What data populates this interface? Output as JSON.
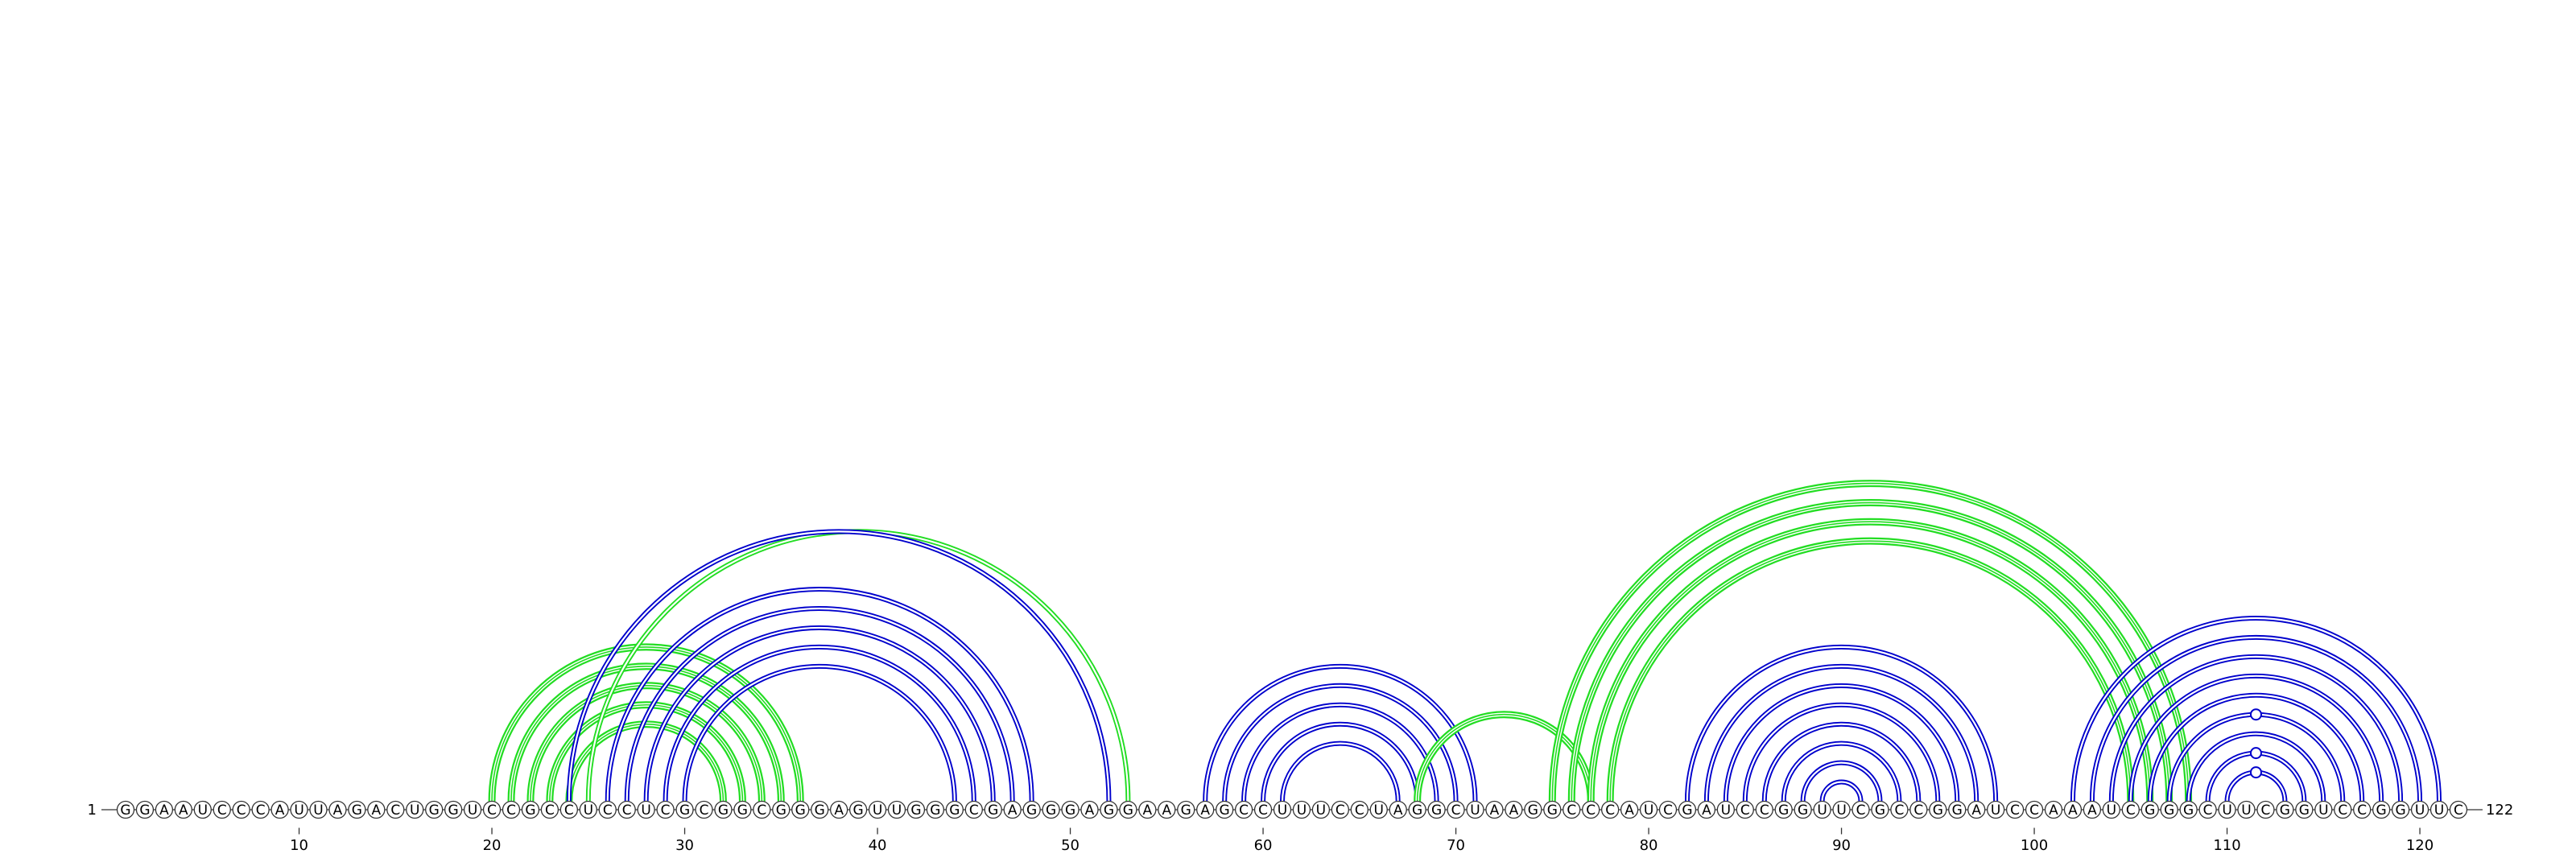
{
  "sequence": {
    "start_label": "1",
    "end_label": "122",
    "bases": "GGAAUCCCAUUAGACUGGUCCGCCUCCUCGCGGCGGGAGUUGGGCGAGGGAGGAAGAGCCUUUCCUAGGCUAAGGCCCAUCGAUCCGGUUCGCCGGAUCCAAAUCGGGCUUCGGUCCGGUUC"
  },
  "ruler": {
    "ticks": [
      "10",
      "20",
      "30",
      "40",
      "50",
      "60",
      "70",
      "80",
      "90",
      "100",
      "110",
      "120"
    ]
  },
  "colors": {
    "blue_arc": "#0000cc",
    "green_arc": "#22dd22",
    "circle_fill": "#ffffff",
    "circle_stroke": "#333333",
    "text": "#000000"
  },
  "arc_groups": [
    {
      "color": "green",
      "style": "triple",
      "pairs": [
        [
          20,
          36
        ],
        [
          21,
          35
        ],
        [
          22,
          34
        ],
        [
          23,
          33
        ],
        [
          24,
          32
        ]
      ]
    },
    {
      "color": "green",
      "style": "double",
      "pairs": [
        [
          25,
          53
        ]
      ]
    },
    {
      "color": "blue",
      "style": "double",
      "pairs": [
        [
          24,
          52
        ],
        [
          26,
          48
        ],
        [
          27,
          47
        ],
        [
          28,
          46
        ],
        [
          29,
          45
        ],
        [
          30,
          44
        ]
      ]
    },
    {
      "color": "blue",
      "style": "double",
      "pairs": [
        [
          57,
          71
        ],
        [
          58,
          70
        ],
        [
          59,
          69
        ],
        [
          60,
          68
        ],
        [
          61,
          67
        ]
      ]
    },
    {
      "color": "green",
      "style": "triple",
      "pairs": [
        [
          68,
          77
        ]
      ]
    },
    {
      "color": "green",
      "style": "triple",
      "pairs": [
        [
          75,
          108
        ],
        [
          76,
          107
        ],
        [
          77,
          106
        ],
        [
          78,
          105
        ]
      ]
    },
    {
      "color": "blue",
      "style": "double",
      "pairs": [
        [
          82,
          98
        ],
        [
          83,
          97
        ],
        [
          84,
          96
        ],
        [
          85,
          95
        ],
        [
          86,
          94
        ],
        [
          87,
          93
        ],
        [
          88,
          92
        ],
        [
          89,
          91
        ]
      ]
    },
    {
      "color": "blue",
      "style": "double",
      "pairs": [
        [
          102,
          121
        ],
        [
          103,
          120
        ],
        [
          104,
          119
        ],
        [
          105,
          118
        ],
        [
          106,
          117
        ],
        [
          107,
          116
        ],
        [
          108,
          115
        ],
        [
          109,
          114
        ],
        [
          110,
          113
        ]
      ]
    }
  ],
  "markers": [
    {
      "pos": 90.5,
      "level": 1
    },
    {
      "pos": 111.5,
      "level": 1
    },
    {
      "pos": 111.5,
      "level": 2
    },
    {
      "pos": 111.5,
      "level": 4
    }
  ]
}
